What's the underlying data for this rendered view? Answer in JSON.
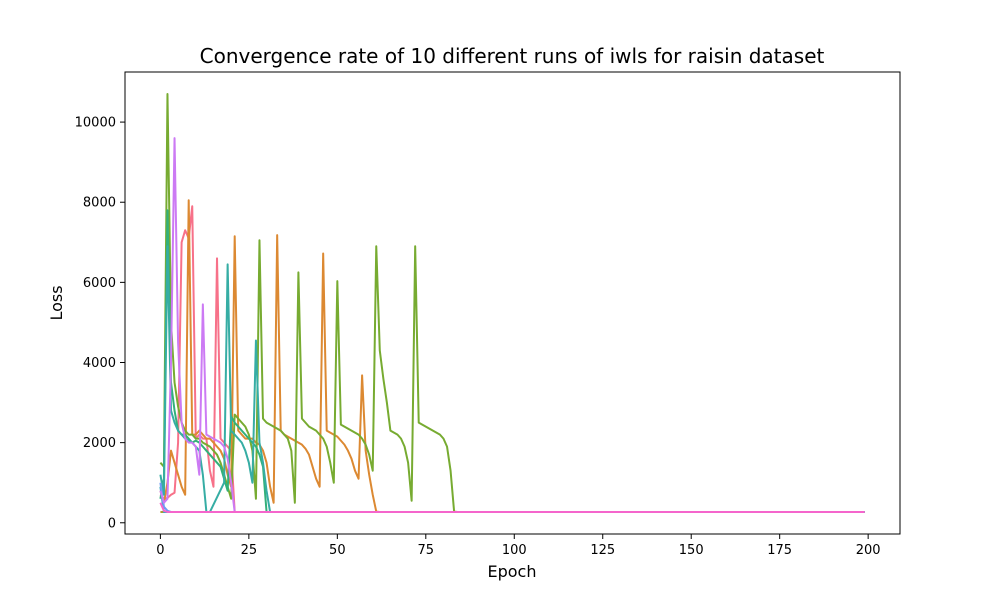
{
  "chart_data": {
    "type": "line",
    "title": "Convergence rate of 10 different runs of iwls for raisin dataset",
    "xlabel": "Epoch",
    "ylabel": "Loss",
    "xlim": [
      -10,
      209
    ],
    "ylim": [
      -280,
      11250
    ],
    "xticks": [
      0,
      25,
      50,
      75,
      100,
      125,
      150,
      175,
      200
    ],
    "yticks": [
      0,
      2000,
      4000,
      6000,
      8000,
      10000
    ],
    "grid": false,
    "legend": "none",
    "final_value": 270,
    "final_epoch": 199,
    "series": [
      {
        "color": "#f77189",
        "points": [
          [
            0,
            700
          ],
          [
            1,
            600
          ],
          [
            2,
            620
          ],
          [
            3,
            700
          ],
          [
            4,
            750
          ],
          [
            5,
            2000
          ],
          [
            6,
            7000
          ],
          [
            7,
            7300
          ],
          [
            8,
            7100
          ],
          [
            9,
            7900
          ],
          [
            10,
            2100
          ],
          [
            11,
            2200
          ],
          [
            12,
            2100
          ],
          [
            13,
            2100
          ],
          [
            14,
            1300
          ],
          [
            15,
            900
          ],
          [
            16,
            6600
          ],
          [
            17,
            2100
          ],
          [
            18,
            2000
          ],
          [
            19,
            1900
          ],
          [
            20,
            1800
          ],
          [
            21,
            270
          ],
          [
            22,
            270
          ]
        ]
      },
      {
        "color": "#dc8932",
        "points": [
          [
            0,
            800
          ],
          [
            1,
            500
          ],
          [
            2,
            1000
          ],
          [
            3,
            1800
          ],
          [
            4,
            1500
          ],
          [
            5,
            1200
          ],
          [
            6,
            900
          ],
          [
            7,
            700
          ],
          [
            8,
            8050
          ],
          [
            9,
            2200
          ],
          [
            10,
            2200
          ],
          [
            11,
            2300
          ],
          [
            12,
            2200
          ],
          [
            13,
            2100
          ],
          [
            14,
            2100
          ],
          [
            15,
            2000
          ],
          [
            16,
            1900
          ],
          [
            17,
            1800
          ],
          [
            18,
            1600
          ],
          [
            19,
            1200
          ],
          [
            20,
            900
          ],
          [
            21,
            7150
          ],
          [
            22,
            2300
          ],
          [
            23,
            2200
          ],
          [
            24,
            2100
          ],
          [
            25,
            2100
          ],
          [
            26,
            2100
          ],
          [
            27,
            2000
          ],
          [
            28,
            1950
          ],
          [
            29,
            1800
          ],
          [
            30,
            1500
          ],
          [
            31,
            900
          ],
          [
            32,
            500
          ],
          [
            33,
            7180
          ],
          [
            34,
            2300
          ],
          [
            35,
            2200
          ],
          [
            36,
            2150
          ],
          [
            37,
            2100
          ],
          [
            38,
            2050
          ],
          [
            39,
            2000
          ],
          [
            40,
            1950
          ],
          [
            41,
            1850
          ],
          [
            42,
            1700
          ],
          [
            43,
            1400
          ],
          [
            44,
            1100
          ],
          [
            45,
            900
          ],
          [
            46,
            6720
          ],
          [
            47,
            2300
          ],
          [
            48,
            2250
          ],
          [
            49,
            2200
          ],
          [
            50,
            2150
          ],
          [
            51,
            2050
          ],
          [
            52,
            1950
          ],
          [
            53,
            1800
          ],
          [
            54,
            1600
          ],
          [
            55,
            1300
          ],
          [
            56,
            1100
          ],
          [
            57,
            3680
          ],
          [
            58,
            1800
          ],
          [
            59,
            1200
          ],
          [
            60,
            700
          ],
          [
            61,
            280
          ],
          [
            62,
            270
          ]
        ]
      },
      {
        "color": "#ae9d31",
        "points": [
          [
            0,
            270
          ],
          [
            1,
            270
          ]
        ]
      },
      {
        "color": "#77ab31",
        "points": [
          [
            0,
            1500
          ],
          [
            1,
            1400
          ],
          [
            2,
            10700
          ],
          [
            3,
            5000
          ],
          [
            4,
            3500
          ],
          [
            5,
            2900
          ],
          [
            6,
            2500
          ],
          [
            7,
            2300
          ],
          [
            8,
            2200
          ],
          [
            9,
            2200
          ],
          [
            10,
            2100
          ],
          [
            11,
            2100
          ],
          [
            12,
            2000
          ],
          [
            13,
            1950
          ],
          [
            14,
            1900
          ],
          [
            15,
            1800
          ],
          [
            16,
            1700
          ],
          [
            17,
            1500
          ],
          [
            18,
            1200
          ],
          [
            19,
            900
          ],
          [
            20,
            600
          ],
          [
            21,
            2700
          ],
          [
            22,
            2600
          ],
          [
            23,
            2500
          ],
          [
            24,
            2400
          ],
          [
            25,
            2200
          ],
          [
            26,
            1800
          ],
          [
            27,
            600
          ],
          [
            28,
            7050
          ],
          [
            29,
            2600
          ],
          [
            30,
            2500
          ],
          [
            31,
            2450
          ],
          [
            32,
            2400
          ],
          [
            33,
            2350
          ],
          [
            34,
            2300
          ],
          [
            35,
            2200
          ],
          [
            36,
            2100
          ],
          [
            37,
            1800
          ],
          [
            38,
            500
          ],
          [
            39,
            6250
          ],
          [
            40,
            2600
          ],
          [
            41,
            2500
          ],
          [
            42,
            2400
          ],
          [
            43,
            2350
          ],
          [
            44,
            2300
          ],
          [
            45,
            2200
          ],
          [
            46,
            2100
          ],
          [
            47,
            1900
          ],
          [
            48,
            1500
          ],
          [
            49,
            1000
          ],
          [
            50,
            6030
          ],
          [
            51,
            2450
          ],
          [
            52,
            2400
          ],
          [
            53,
            2350
          ],
          [
            54,
            2300
          ],
          [
            55,
            2250
          ],
          [
            56,
            2200
          ],
          [
            57,
            2100
          ],
          [
            58,
            1950
          ],
          [
            59,
            1700
          ],
          [
            60,
            1300
          ],
          [
            61,
            6900
          ],
          [
            62,
            4300
          ],
          [
            63,
            3600
          ],
          [
            64,
            3000
          ],
          [
            65,
            2300
          ],
          [
            66,
            2250
          ],
          [
            67,
            2200
          ],
          [
            68,
            2100
          ],
          [
            69,
            1900
          ],
          [
            70,
            1500
          ],
          [
            71,
            550
          ],
          [
            72,
            6900
          ],
          [
            73,
            2500
          ],
          [
            74,
            2450
          ],
          [
            75,
            2400
          ],
          [
            76,
            2350
          ],
          [
            77,
            2300
          ],
          [
            78,
            2250
          ],
          [
            79,
            2200
          ],
          [
            80,
            2100
          ],
          [
            81,
            1900
          ],
          [
            82,
            1300
          ],
          [
            83,
            280
          ],
          [
            84,
            270
          ]
        ]
      },
      {
        "color": "#33b07a",
        "points": [
          [
            0,
            600
          ],
          [
            1,
            1100
          ],
          [
            2,
            7800
          ],
          [
            3,
            3500
          ],
          [
            4,
            2800
          ],
          [
            5,
            2300
          ],
          [
            6,
            2200
          ],
          [
            7,
            2200
          ],
          [
            8,
            2100
          ],
          [
            9,
            2000
          ],
          [
            10,
            2050
          ],
          [
            11,
            2000
          ],
          [
            12,
            1900
          ],
          [
            13,
            1800
          ],
          [
            14,
            1700
          ],
          [
            15,
            1600
          ],
          [
            16,
            1500
          ],
          [
            17,
            1400
          ],
          [
            18,
            1100
          ],
          [
            19,
            800
          ],
          [
            20,
            2650
          ],
          [
            21,
            2500
          ],
          [
            22,
            2400
          ],
          [
            23,
            2300
          ],
          [
            24,
            2200
          ],
          [
            25,
            2100
          ],
          [
            26,
            2000
          ],
          [
            27,
            1900
          ],
          [
            28,
            1700
          ],
          [
            29,
            1400
          ],
          [
            30,
            270
          ],
          [
            31,
            270
          ]
        ]
      },
      {
        "color": "#36ada4",
        "points": [
          [
            0,
            1200
          ],
          [
            1,
            700
          ],
          [
            2,
            6900
          ],
          [
            3,
            2800
          ],
          [
            4,
            2500
          ],
          [
            5,
            2300
          ],
          [
            6,
            2200
          ],
          [
            7,
            2100
          ],
          [
            8,
            2050
          ],
          [
            9,
            2000
          ],
          [
            10,
            1900
          ],
          [
            11,
            1800
          ],
          [
            12,
            1200
          ],
          [
            13,
            270
          ],
          [
            14,
            270
          ],
          [
            18,
            1000
          ],
          [
            19,
            6450
          ],
          [
            20,
            2300
          ],
          [
            21,
            2200
          ],
          [
            22,
            2100
          ],
          [
            23,
            2000
          ],
          [
            24,
            1800
          ],
          [
            25,
            1500
          ],
          [
            26,
            1000
          ],
          [
            27,
            4550
          ],
          [
            28,
            2000
          ],
          [
            29,
            1500
          ],
          [
            30,
            800
          ],
          [
            31,
            270
          ],
          [
            32,
            270
          ]
        ]
      },
      {
        "color": "#38a9c5",
        "points": [
          [
            0,
            900
          ],
          [
            1,
            270
          ],
          [
            2,
            270
          ]
        ]
      },
      {
        "color": "#6e9bf4",
        "points": [
          [
            0,
            1000
          ],
          [
            1,
            400
          ],
          [
            2,
            300
          ],
          [
            3,
            270
          ]
        ]
      },
      {
        "color": "#cc7af4",
        "points": [
          [
            0,
            800
          ],
          [
            1,
            500
          ],
          [
            2,
            600
          ],
          [
            3,
            4000
          ],
          [
            4,
            9600
          ],
          [
            5,
            4500
          ],
          [
            6,
            2500
          ],
          [
            7,
            2100
          ],
          [
            8,
            2000
          ],
          [
            9,
            2000
          ],
          [
            10,
            1900
          ],
          [
            11,
            1200
          ],
          [
            12,
            5450
          ],
          [
            13,
            2200
          ],
          [
            14,
            2150
          ],
          [
            15,
            2100
          ],
          [
            16,
            2050
          ],
          [
            17,
            2000
          ],
          [
            18,
            1900
          ],
          [
            19,
            1600
          ],
          [
            20,
            1000
          ],
          [
            21,
            270
          ],
          [
            22,
            270
          ]
        ]
      },
      {
        "color": "#f565cc",
        "points": [
          [
            0,
            500
          ],
          [
            1,
            300
          ],
          [
            2,
            270
          ],
          [
            199,
            270
          ]
        ]
      }
    ]
  }
}
